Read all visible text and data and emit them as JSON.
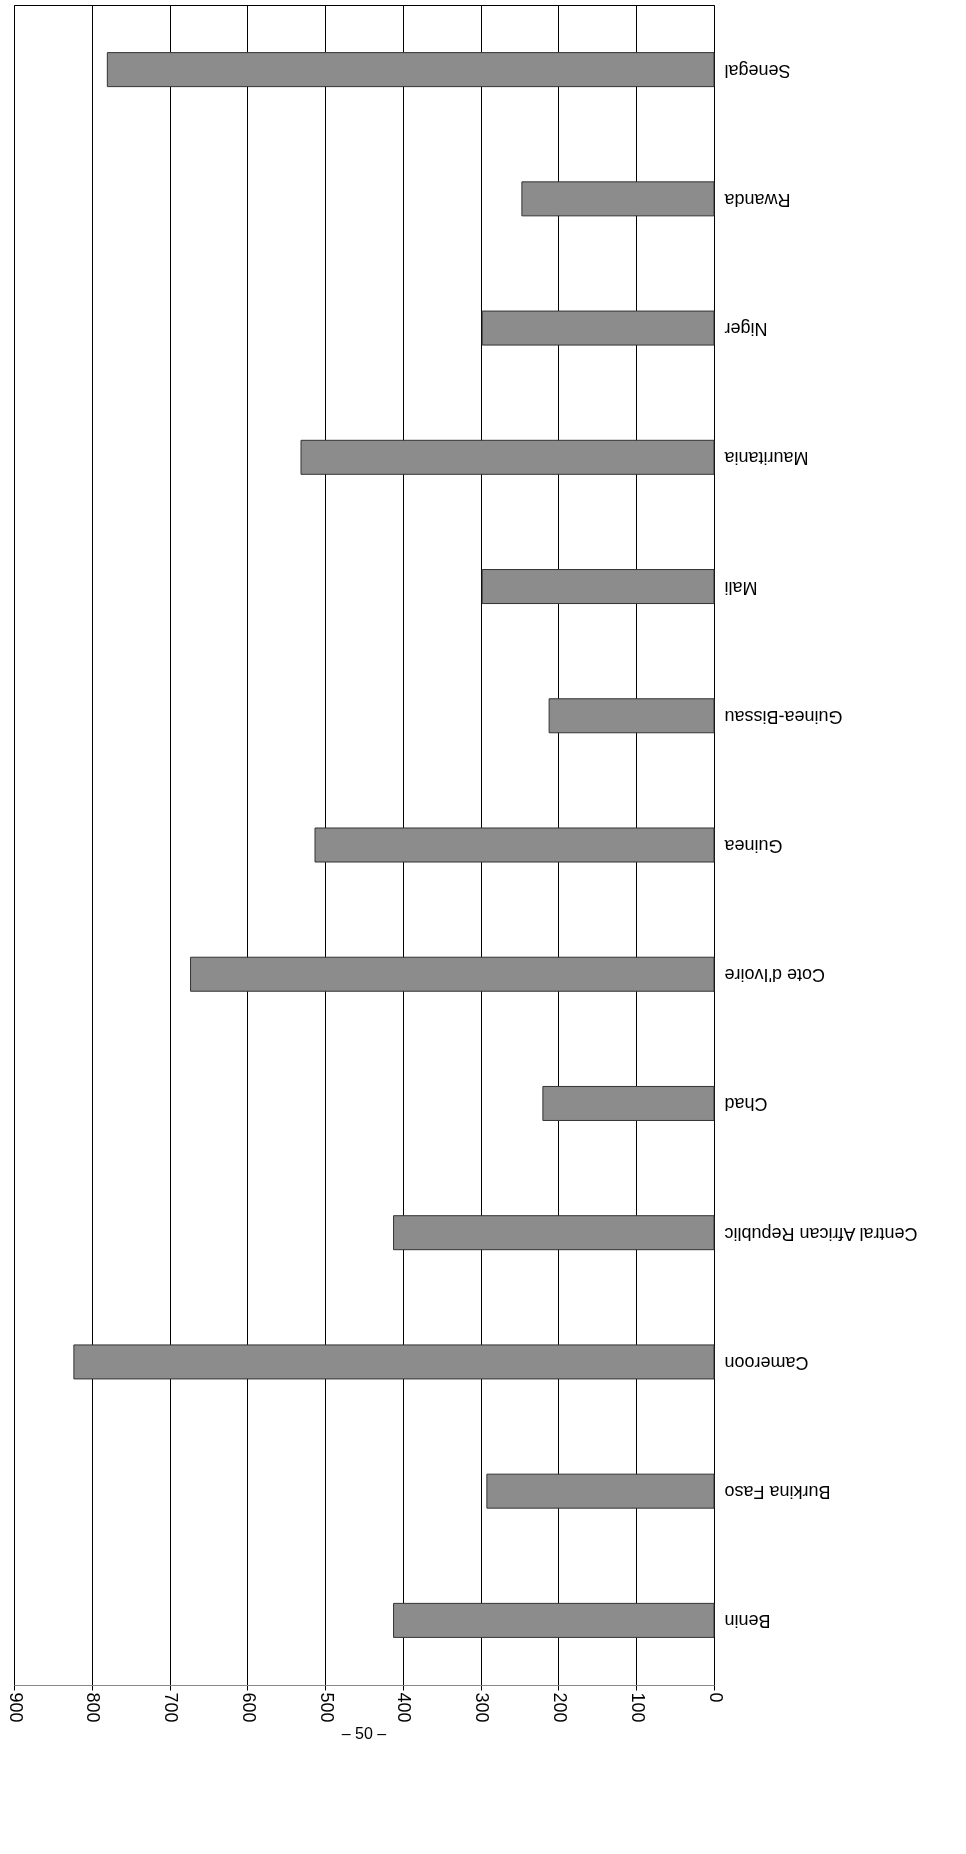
{
  "chart_data": {
    "type": "bar",
    "orientation": "horizontal",
    "categories": [
      "Senegal",
      "Rwanda",
      "Niger",
      "Mauritania",
      "Mali",
      "Guinea-Bissau",
      "Guinea",
      "Cote d'Ivoire",
      "Chad",
      "Central African Republic",
      "Cameroon",
      "Burkina Faso",
      "Benin"
    ],
    "values": [
      780,
      247,
      298,
      531,
      298,
      212,
      513,
      673,
      220,
      412,
      823,
      292,
      412
    ],
    "color": "#8c8c8c",
    "xlim": [
      900,
      0
    ],
    "xticks": [
      900,
      800,
      700,
      600,
      500,
      400,
      300,
      200,
      100,
      0
    ],
    "grid": "x",
    "annotations": [
      "– 50 –"
    ]
  }
}
